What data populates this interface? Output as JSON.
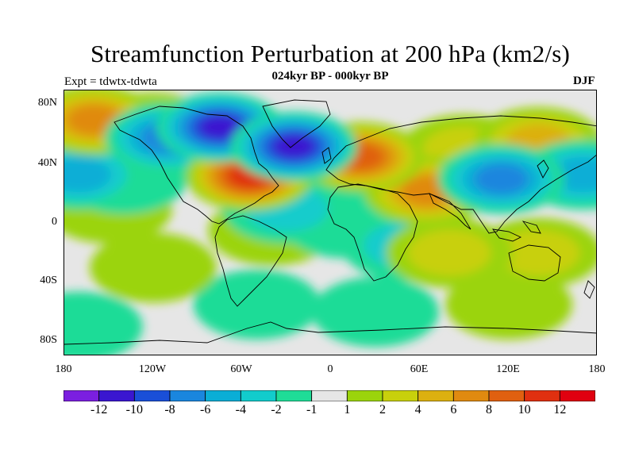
{
  "title": "Streamfunction Perturbation at 200 hPa (km2/s)",
  "subtitle": "024kyr BP - 000kyr BP",
  "experiment": "Expt = tdwtx-tdwta",
  "season": "DJF",
  "lat_labels": [
    "80N",
    "40N",
    "0",
    "40S",
    "80S"
  ],
  "lon_labels": [
    "180",
    "120W",
    "60W",
    "0",
    "60E",
    "120E",
    "180"
  ],
  "colorbar": {
    "colors": [
      "#7b1fe0",
      "#3a16d0",
      "#1a4fd8",
      "#1a86de",
      "#0aaed6",
      "#12cccc",
      "#1fdc97",
      "#e6e6e6",
      "#9bd40c",
      "#c8d00c",
      "#dcb010",
      "#e08a10",
      "#e06010",
      "#e03010",
      "#e00010"
    ],
    "labels": [
      "-12",
      "-10",
      "-8",
      "-6",
      "-4",
      "-2",
      "-1",
      "1",
      "2",
      "4",
      "6",
      "8",
      "10",
      "12"
    ]
  },
  "map_fields": [
    {
      "lon": -170,
      "lat": 33,
      "value": -6
    },
    {
      "lon": -140,
      "lat": 30,
      "value": -1.5
    },
    {
      "lon": -150,
      "lat": 10,
      "value": 1
    },
    {
      "lon": -160,
      "lat": 70,
      "value": 7
    },
    {
      "lon": -120,
      "lat": 65,
      "value": 3
    },
    {
      "lon": -110,
      "lat": 58,
      "value": -8
    },
    {
      "lon": -75,
      "lat": 65,
      "value": -12
    },
    {
      "lon": -25,
      "lat": 52,
      "value": -12
    },
    {
      "lon": -55,
      "lat": 32,
      "value": 11
    },
    {
      "lon": 20,
      "lat": 45,
      "value": 10
    },
    {
      "lon": 65,
      "lat": 22,
      "value": 8
    },
    {
      "lon": 90,
      "lat": 50,
      "value": 4
    },
    {
      "lon": 115,
      "lat": 30,
      "value": -8
    },
    {
      "lon": 140,
      "lat": 55,
      "value": 6
    },
    {
      "lon": 170,
      "lat": 33,
      "value": -6
    },
    {
      "lon": -40,
      "lat": -5,
      "value": 1.5
    },
    {
      "lon": -30,
      "lat": 10,
      "value": -3
    },
    {
      "lon": 10,
      "lat": 0,
      "value": -2.5
    },
    {
      "lon": 50,
      "lat": -15,
      "value": -3
    },
    {
      "lon": 80,
      "lat": -20,
      "value": 4
    },
    {
      "lon": 140,
      "lat": -20,
      "value": 3
    },
    {
      "lon": -120,
      "lat": -30,
      "value": 2
    },
    {
      "lon": -50,
      "lat": -55,
      "value": -1.5
    },
    {
      "lon": 30,
      "lat": -60,
      "value": -2
    },
    {
      "lon": 120,
      "lat": -55,
      "value": 1.5
    },
    {
      "lon": -170,
      "lat": -70,
      "value": -2
    }
  ]
}
